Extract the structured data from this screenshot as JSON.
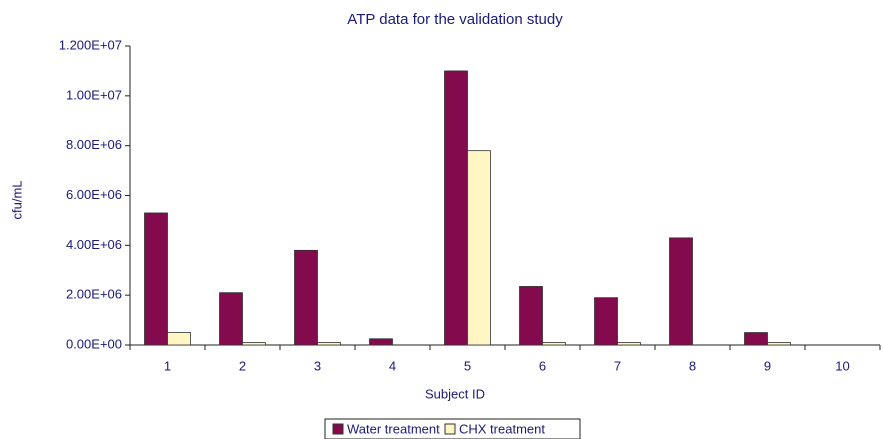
{
  "chart_data": {
    "type": "bar",
    "title": "ATP data for the validation study",
    "x_label": "Subject ID",
    "y_label": "cfu/mL",
    "categories": [
      "1",
      "2",
      "3",
      "4",
      "5",
      "6",
      "7",
      "8",
      "9",
      "10"
    ],
    "series": [
      {
        "name": "Water treatment",
        "color": "#840a4e",
        "values": [
          5300000,
          2100000,
          3800000,
          250000,
          11000000,
          2350000,
          1900000,
          4300000,
          500000,
          0
        ]
      },
      {
        "name": "CHX treatment",
        "color": "#fff6c4",
        "values": [
          500000,
          100000,
          100000,
          0,
          7800000,
          100000,
          100000,
          0,
          100000,
          0
        ]
      }
    ],
    "ylim": [
      0,
      12000000
    ],
    "yticks": [
      {
        "value": 0,
        "label": "0.00E+00"
      },
      {
        "value": 2000000,
        "label": "2.00E+06"
      },
      {
        "value": 4000000,
        "label": "4.00E+06"
      },
      {
        "value": 6000000,
        "label": "6.00E+06"
      },
      {
        "value": 8000000,
        "label": "8.00E+06"
      },
      {
        "value": 10000000,
        "label": "1.00E+07"
      },
      {
        "value": 12000000,
        "label": "1.200E+07"
      }
    ],
    "legend": "bottom"
  }
}
